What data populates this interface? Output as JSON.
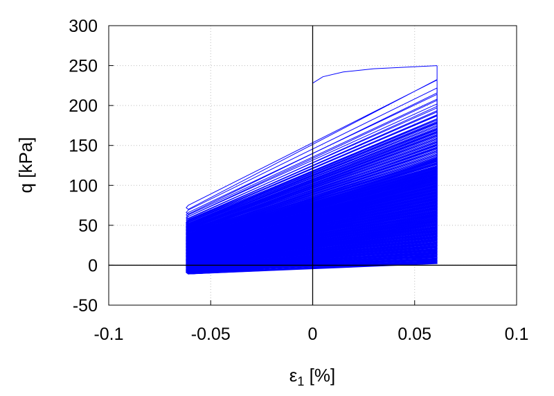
{
  "chart_data": {
    "type": "line",
    "title": "",
    "xlabel": "ε",
    "xlabel_sub": "1",
    "xlabel_unit": " [%]",
    "ylabel": "q [kPa]",
    "xlim": [
      -0.1,
      0.1
    ],
    "ylim": [
      -50,
      300
    ],
    "grid": true,
    "xticks": [
      -0.1,
      -0.05,
      0,
      0.05,
      0.1
    ],
    "xtick_labels": [
      "-0.1",
      "-0.05",
      "0",
      "0.05",
      "0.1"
    ],
    "yticks": [
      -50,
      0,
      50,
      100,
      150,
      200,
      250,
      300
    ],
    "ytick_labels": [
      "-50",
      "0",
      "50",
      "100",
      "150",
      "200",
      "250",
      "300"
    ],
    "series_color": "#0000ff",
    "strain_amplitude": 0.061,
    "initial_loading": {
      "x": [
        0,
        0.005,
        0.015,
        0.03,
        0.061
      ],
      "y": [
        228,
        236,
        242,
        246,
        250
      ]
    },
    "cycles": {
      "peak_q": [
        250,
        232,
        222,
        214,
        208,
        202,
        197,
        192,
        187,
        182,
        178,
        174,
        170,
        166,
        162,
        158,
        154,
        150,
        146,
        142,
        138,
        134,
        130,
        126,
        122,
        118,
        114,
        110,
        106,
        102,
        98,
        94,
        90,
        86,
        82,
        78,
        74,
        70,
        66,
        62,
        58,
        54,
        50,
        46,
        42,
        38,
        34,
        30,
        26,
        22,
        18,
        14,
        10,
        6,
        3
      ],
      "trough_q": [
        70,
        64,
        61,
        58,
        56,
        54,
        52,
        51,
        49,
        47,
        46,
        45,
        43,
        42,
        41,
        39,
        38,
        37,
        36,
        34,
        33,
        32,
        30,
        29,
        28,
        26,
        25,
        24,
        22,
        21,
        20,
        18,
        17,
        16,
        14,
        13,
        12,
        10,
        9,
        8,
        6,
        5,
        4,
        3,
        1,
        0,
        -1,
        -3,
        -4,
        -5,
        -7,
        -8,
        -9,
        -11,
        -11
      ]
    }
  }
}
